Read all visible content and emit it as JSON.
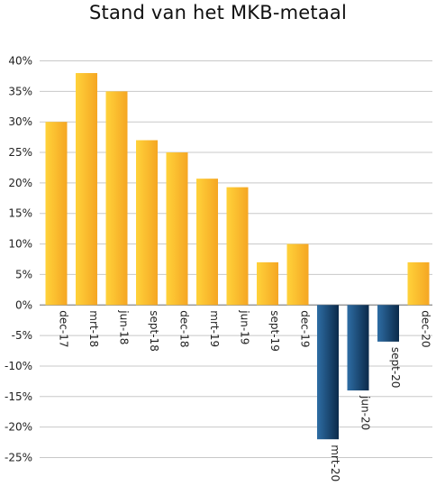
{
  "chart_data": {
    "type": "bar",
    "title": "Stand van het MKB-metaal",
    "xlabel": "",
    "ylabel": "",
    "categories": [
      "dec-17",
      "mrt-18",
      "jun-18",
      "sept-18",
      "dec-18",
      "mrt-19",
      "jun-19",
      "sept-19",
      "dec-19",
      "mrt-20",
      "jun-20",
      "sept-20",
      "dec-20"
    ],
    "values": [
      30,
      38,
      35,
      27,
      25,
      20.7,
      19.3,
      7,
      10,
      -22,
      -14,
      -6,
      7
    ],
    "ylim": [
      -25,
      40
    ],
    "yticks": [
      40,
      35,
      30,
      25,
      20,
      15,
      10,
      5,
      0,
      -5,
      -10,
      -15,
      -20,
      -25
    ],
    "ytick_labels": [
      "40%",
      "35%",
      "30%",
      "25%",
      "20%",
      "15%",
      "10%",
      "5%",
      "0%",
      "-5%",
      "-10%",
      "-15%",
      "-20%",
      "-25%"
    ],
    "grid": true,
    "legend": "none",
    "colors": {
      "positive_light": "#FFD23A",
      "positive_dark": "#F5A623",
      "negative_light": "#2E6DA4",
      "negative_dark": "#0B2A4A",
      "grid": "#c8c8c8",
      "zero_line": "#888888"
    }
  }
}
